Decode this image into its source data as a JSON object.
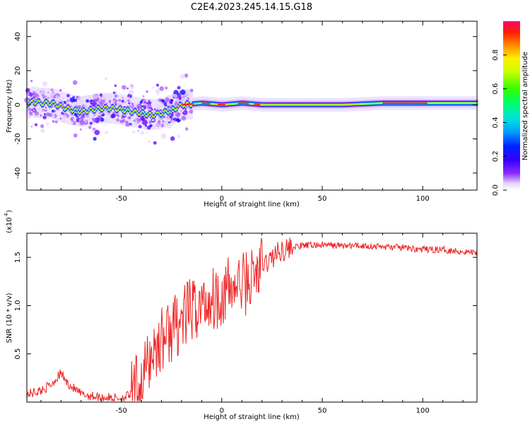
{
  "title": "C2E4.2023.245.14.15.G18",
  "colormap": [
    "#ffffff",
    "#e9d8ff",
    "#a45cff",
    "#5a00ff",
    "#0000ff",
    "#00aaff",
    "#00e6e6",
    "#00ff66",
    "#33ff00",
    "#c8ff00",
    "#ffff00",
    "#ffaa00",
    "#ff3300",
    "#ff0044"
  ],
  "colors": {
    "snr_line": "#ee2222",
    "trace_core": "#ff2222"
  },
  "chart_data": [
    {
      "type": "heatmap",
      "name": "spectrogram",
      "xlabel": "Height of straight line (km)",
      "ylabel": "Frequency (Hz)",
      "xlim": [
        -97,
        127
      ],
      "ylim": [
        -50,
        49
      ],
      "x_ticks": [
        -50,
        0,
        50,
        100
      ],
      "y_ticks": [
        -40,
        -20,
        0,
        20,
        40
      ],
      "x_tick_labels": [
        "-50",
        "0",
        "50",
        "100"
      ],
      "y_tick_labels": [
        "-40",
        "-20",
        "0",
        "20",
        "40"
      ],
      "colorbar": {
        "label": "Normalized spectral amplitude",
        "range": [
          0,
          1
        ],
        "ticks": [
          0.0,
          0.2,
          0.4,
          0.6,
          0.8
        ],
        "tick_labels": [
          "0.0",
          "0.2",
          "0.4",
          "0.6",
          "0.8"
        ]
      },
      "trace_center": [
        {
          "x": -95,
          "y": 2
        },
        {
          "x": -90,
          "y": 1
        },
        {
          "x": -85,
          "y": 1
        },
        {
          "x": -80,
          "y": -1
        },
        {
          "x": -75,
          "y": -3
        },
        {
          "x": -70,
          "y": -4
        },
        {
          "x": -65,
          "y": -3
        },
        {
          "x": -60,
          "y": -2
        },
        {
          "x": -55,
          "y": -2
        },
        {
          "x": -50,
          "y": -3
        },
        {
          "x": -45,
          "y": -4
        },
        {
          "x": -40,
          "y": -5
        },
        {
          "x": -35,
          "y": -6
        },
        {
          "x": -30,
          "y": -5
        },
        {
          "x": -25,
          "y": -3
        },
        {
          "x": -20,
          "y": 0
        },
        {
          "x": -10,
          "y": 1
        },
        {
          "x": 0,
          "y": 0
        },
        {
          "x": 10,
          "y": 1
        },
        {
          "x": 20,
          "y": 0
        },
        {
          "x": 40,
          "y": 0
        },
        {
          "x": 60,
          "y": 0
        },
        {
          "x": 80,
          "y": 1
        },
        {
          "x": 100,
          "y": 1
        },
        {
          "x": 110,
          "y": 1
        },
        {
          "x": 127,
          "y": 1
        }
      ]
    },
    {
      "type": "line",
      "name": "snr",
      "xlabel": "Height of straight line (km)",
      "ylabel": "SNR (10 * v/v)",
      "y_multiplier": "(x10^4)",
      "xlim": [
        -97,
        127
      ],
      "ylim": [
        0,
        1.75
      ],
      "x_ticks": [
        -50,
        0,
        50,
        100
      ],
      "y_ticks": [
        0.5,
        1.0,
        1.5
      ],
      "x_tick_labels": [
        "-50",
        "0",
        "50",
        "100"
      ],
      "y_tick_labels": [
        "0.5",
        "1.0",
        "1.5"
      ],
      "series": [
        {
          "x": [
            -97,
            -90,
            -85,
            -80,
            -77,
            -70,
            -60,
            -50,
            -45,
            -40,
            -35,
            -30,
            -25,
            -20,
            -15,
            -10,
            -5,
            0,
            5,
            10,
            15,
            20,
            25,
            30,
            40,
            50,
            60,
            70,
            80,
            90,
            100,
            110,
            120,
            127
          ],
          "y": [
            0.08,
            0.12,
            0.18,
            0.3,
            0.2,
            0.08,
            0.05,
            0.04,
            0.08,
            0.2,
            0.5,
            0.65,
            0.75,
            0.85,
            0.95,
            1.0,
            1.08,
            1.12,
            1.18,
            1.22,
            1.28,
            1.4,
            1.5,
            1.58,
            1.62,
            1.63,
            1.62,
            1.62,
            1.61,
            1.6,
            1.58,
            1.58,
            1.56,
            1.55
          ]
        }
      ]
    }
  ]
}
